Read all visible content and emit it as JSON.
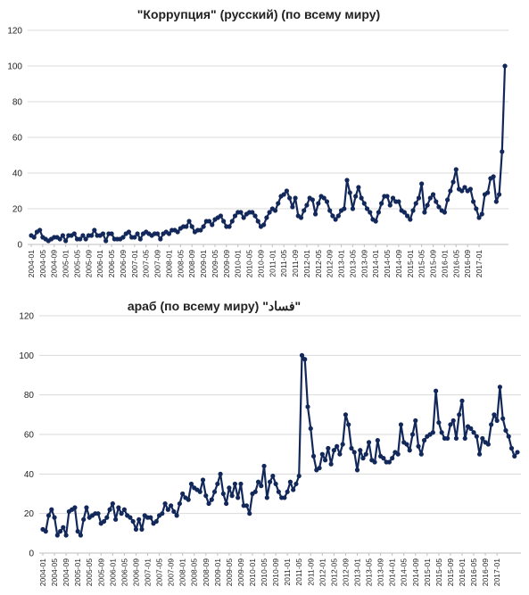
{
  "chart_data": [
    {
      "type": "line",
      "title": "\"Коррупция\" (русский) (по всему миру)",
      "ylim": [
        0,
        120
      ],
      "yticks": [
        0,
        20,
        40,
        60,
        80,
        100,
        120
      ],
      "grid": "horizontal",
      "color": "#13285a",
      "start": "2004-01",
      "xtick_labels": [
        "2004-01",
        "2004-05",
        "2004-09",
        "2005-01",
        "2005-05",
        "2005-09",
        "2006-01",
        "2006-05",
        "2006-09",
        "2007-01",
        "2007-05",
        "2007-09",
        "2008-01",
        "2008-05",
        "2008-09",
        "2009-01",
        "2009-05",
        "2009-09",
        "2010-01",
        "2010-05",
        "2010-09",
        "2011-01",
        "2011-05",
        "2011-09",
        "2012-01",
        "2012-05",
        "2012-09",
        "2013-01",
        "2013-05",
        "2013-09",
        "2014-01",
        "2014-05",
        "2014-09",
        "2015-01",
        "2015-05",
        "2015-09",
        "2016-01",
        "2016-05",
        "2016-09",
        "2017-01"
      ],
      "series": [
        {
          "values": [
            5,
            4,
            7,
            8,
            4,
            3,
            2,
            3,
            4,
            4,
            3,
            5,
            2,
            5,
            5,
            6,
            3,
            3,
            5,
            3,
            5,
            5,
            8,
            5,
            5,
            6,
            2,
            6,
            6,
            3,
            3,
            3,
            4,
            6,
            7,
            4,
            4,
            6,
            3,
            6,
            7,
            6,
            5,
            6,
            6,
            3,
            6,
            7,
            6,
            8,
            8,
            7,
            9,
            10,
            10,
            13,
            10,
            7,
            8,
            8,
            10,
            13,
            13,
            11,
            14,
            15,
            16,
            13,
            10,
            10,
            13,
            16,
            18,
            18,
            15,
            17,
            18,
            18,
            16,
            13,
            10,
            11,
            15,
            18,
            20,
            19,
            23,
            27,
            28,
            30,
            26,
            21,
            26,
            16,
            15,
            19,
            22,
            26,
            25,
            17,
            23,
            27,
            26,
            24,
            19,
            16,
            14,
            16,
            19,
            20,
            36,
            29,
            20,
            27,
            32,
            26,
            23,
            20,
            18,
            14,
            13,
            18,
            23,
            27,
            27,
            22,
            26,
            24,
            24,
            19,
            18,
            16,
            14,
            19,
            23,
            26,
            34,
            18,
            22,
            26,
            28,
            24,
            21,
            19,
            18,
            25,
            30,
            35,
            42,
            31,
            30,
            32,
            30,
            31,
            24,
            20,
            15,
            17,
            28,
            29,
            37,
            38,
            24,
            28,
            52,
            100
          ]
        }
      ]
    },
    {
      "type": "line",
      "title": "араб (по всему миру) \"فساد\"",
      "ylim": [
        0,
        120
      ],
      "yticks": [
        0,
        20,
        40,
        60,
        80,
        100,
        120
      ],
      "grid": "horizontal",
      "color": "#13285a",
      "start": "2004-01",
      "xtick_labels": [
        "2004-01",
        "2004-05",
        "2004-09",
        "2005-01",
        "2005-05",
        "2005-09",
        "2006-01",
        "2006-05",
        "2006-09",
        "2007-01",
        "2007-05",
        "2007-09",
        "2008-01",
        "2008-05",
        "2008-09",
        "2009-01",
        "2009-05",
        "2009-09",
        "2010-01",
        "2010-05",
        "2010-09",
        "2011-01",
        "2011-05",
        "2011-09",
        "2012-01",
        "2012-05",
        "2012-09",
        "2013-01",
        "2013-05",
        "2013-09",
        "2014-01",
        "2014-05",
        "2014-09",
        "2015-01",
        "2015-05",
        "2015-09",
        "2016-01",
        "2016-05",
        "2016-09",
        "2017-01"
      ],
      "series": [
        {
          "values": [
            12,
            11,
            19,
            22,
            18,
            9,
            11,
            13,
            9,
            21,
            22,
            23,
            11,
            9,
            17,
            23,
            18,
            19,
            20,
            20,
            15,
            16,
            18,
            22,
            25,
            17,
            23,
            20,
            22,
            19,
            18,
            16,
            12,
            17,
            12,
            19,
            18,
            18,
            15,
            16,
            19,
            20,
            25,
            22,
            24,
            21,
            19,
            25,
            30,
            28,
            27,
            35,
            33,
            32,
            31,
            37,
            29,
            25,
            27,
            31,
            35,
            40,
            30,
            25,
            33,
            29,
            35,
            28,
            35,
            24,
            24,
            20,
            30,
            31,
            36,
            34,
            44,
            28,
            36,
            39,
            35,
            31,
            28,
            28,
            31,
            36,
            32,
            35,
            39,
            100,
            98,
            74,
            63,
            49,
            42,
            43,
            50,
            47,
            53,
            45,
            52,
            54,
            50,
            55,
            70,
            65,
            53,
            51,
            42,
            52,
            48,
            50,
            56,
            47,
            46,
            57,
            49,
            48,
            46,
            46,
            48,
            51,
            50,
            65,
            56,
            55,
            52,
            60,
            67,
            54,
            50,
            57,
            59,
            60,
            61,
            82,
            66,
            61,
            58,
            58,
            65,
            67,
            58,
            70,
            77,
            58,
            64,
            63,
            61,
            59,
            50,
            58,
            56,
            55,
            65,
            70,
            67,
            84,
            68,
            62,
            59,
            53,
            49,
            51
          ]
        }
      ]
    }
  ]
}
